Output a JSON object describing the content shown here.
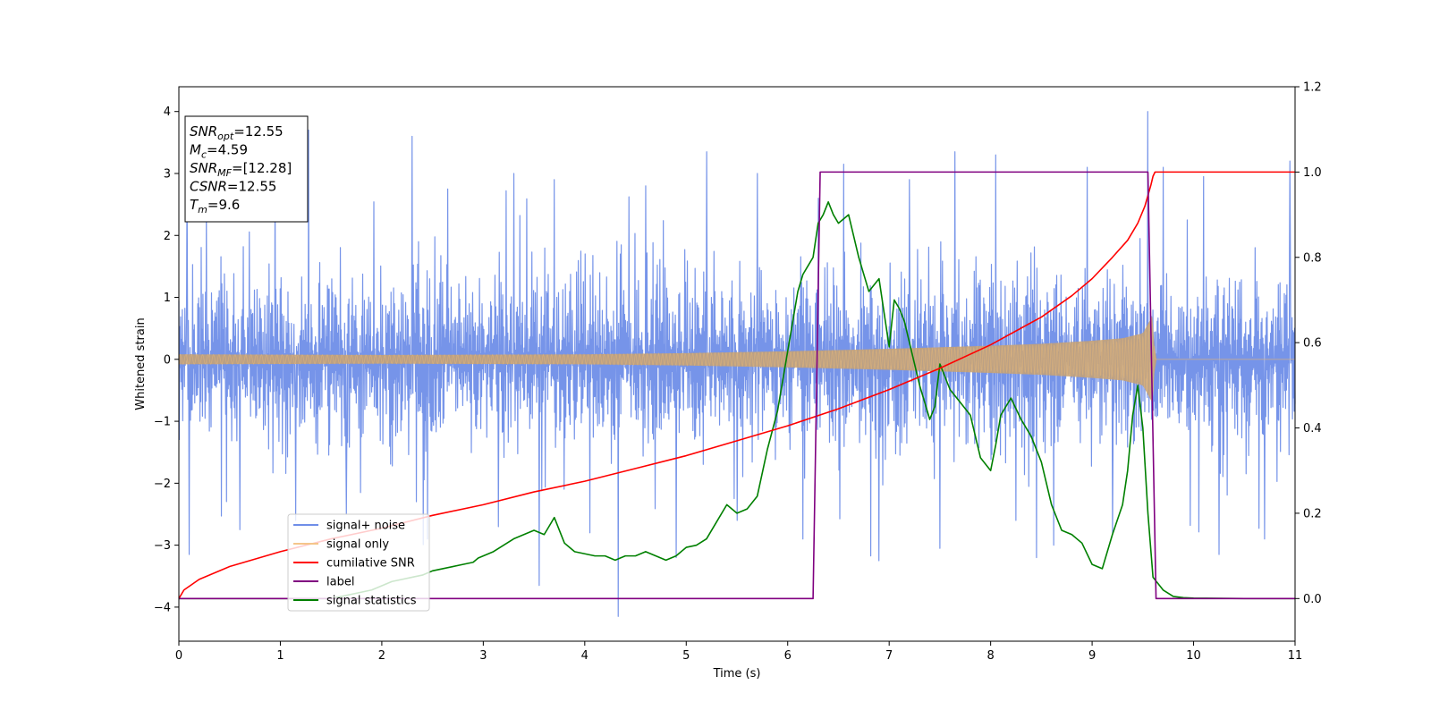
{
  "chart_data": {
    "type": "line",
    "xlabel": "Time (s)",
    "ylabel_left": "Whitened strain",
    "ylabel_right": "",
    "xlim": [
      0,
      11
    ],
    "ylim_left": [
      -4.55,
      4.4
    ],
    "ylim_right": [
      -0.1,
      1.2
    ],
    "x_ticks": [
      0,
      1,
      2,
      3,
      4,
      5,
      6,
      7,
      8,
      9,
      10,
      11
    ],
    "y_ticks_left": [
      -4,
      -3,
      -2,
      -1,
      0,
      1,
      2,
      3,
      4
    ],
    "y_ticks_right": [
      0.0,
      0.2,
      0.4,
      0.6,
      0.8,
      1.0,
      1.2
    ],
    "y_tick_labels_left": [
      "−4",
      "−3",
      "−2",
      "−1",
      "0",
      "1",
      "2",
      "3",
      "4"
    ],
    "y_tick_labels_right": [
      "0.0",
      "0.2",
      "0.4",
      "0.6",
      "0.8",
      "1.0",
      "1.2"
    ],
    "grid": false,
    "legend_position": "lower-left",
    "info_box": {
      "lines": [
        {
          "main": "SNR",
          "sub": "opt",
          "value": "=12.55"
        },
        {
          "main": "M",
          "sub": "c",
          "value": "=4.59"
        },
        {
          "main": "SNR",
          "sub": "MF",
          "value": "=[12.28]"
        },
        {
          "main": "CSNR",
          "sub": "",
          "value": "=12.55"
        },
        {
          "main": "T",
          "sub": "m",
          "value": "=9.6"
        }
      ]
    },
    "series": [
      {
        "name": "signal+ noise",
        "axis": "left",
        "color": "#6f8ee8",
        "kind": "noise",
        "noise_band": 1.3,
        "peaks": [
          {
            "x": 0.08,
            "y": 3.0
          },
          {
            "x": 0.1,
            "y": -3.15
          },
          {
            "x": 0.27,
            "y": 2.45
          },
          {
            "x": 0.6,
            "y": -2.75
          },
          {
            "x": 0.95,
            "y": 3.05
          },
          {
            "x": 1.15,
            "y": -2.6
          },
          {
            "x": 1.28,
            "y": 3.7
          },
          {
            "x": 1.65,
            "y": -2.5
          },
          {
            "x": 2.3,
            "y": 3.6
          },
          {
            "x": 2.45,
            "y": -2.9
          },
          {
            "x": 2.65,
            "y": 2.75
          },
          {
            "x": 3.15,
            "y": -2.7
          },
          {
            "x": 3.3,
            "y": 3.0
          },
          {
            "x": 3.55,
            "y": -3.65
          },
          {
            "x": 3.7,
            "y": 2.9
          },
          {
            "x": 4.05,
            "y": -2.8
          },
          {
            "x": 4.33,
            "y": -4.15
          },
          {
            "x": 4.6,
            "y": 2.8
          },
          {
            "x": 4.9,
            "y": -3.2
          },
          {
            "x": 5.2,
            "y": 3.35
          },
          {
            "x": 5.5,
            "y": -2.6
          },
          {
            "x": 5.7,
            "y": 3.0
          },
          {
            "x": 6.15,
            "y": -2.9
          },
          {
            "x": 6.3,
            "y": 2.6
          },
          {
            "x": 6.55,
            "y": 3.15
          },
          {
            "x": 6.9,
            "y": -3.25
          },
          {
            "x": 7.2,
            "y": 2.9
          },
          {
            "x": 7.5,
            "y": -3.05
          },
          {
            "x": 7.65,
            "y": 3.35
          },
          {
            "x": 8.05,
            "y": 3.3
          },
          {
            "x": 8.25,
            "y": -2.6
          },
          {
            "x": 8.45,
            "y": -3.2
          },
          {
            "x": 8.62,
            "y": -3.0
          },
          {
            "x": 8.95,
            "y": 3.1
          },
          {
            "x": 9.2,
            "y": -2.8
          },
          {
            "x": 9.55,
            "y": 4.0
          },
          {
            "x": 9.7,
            "y": 3.1
          },
          {
            "x": 10.1,
            "y": 2.95
          },
          {
            "x": 10.25,
            "y": -3.15
          },
          {
            "x": 10.7,
            "y": -2.9
          },
          {
            "x": 10.95,
            "y": 3.2
          }
        ]
      },
      {
        "name": "signal only",
        "axis": "left",
        "color": "#f5c58a",
        "kind": "chirp",
        "amp_points": [
          {
            "x": 0,
            "y": 0.08
          },
          {
            "x": 2,
            "y": 0.07
          },
          {
            "x": 4,
            "y": 0.08
          },
          {
            "x": 5,
            "y": 0.1
          },
          {
            "x": 6,
            "y": 0.13
          },
          {
            "x": 7,
            "y": 0.17
          },
          {
            "x": 8,
            "y": 0.22
          },
          {
            "x": 8.5,
            "y": 0.25
          },
          {
            "x": 9,
            "y": 0.3
          },
          {
            "x": 9.3,
            "y": 0.34
          },
          {
            "x": 9.5,
            "y": 0.42
          },
          {
            "x": 9.6,
            "y": 0.72
          },
          {
            "x": 9.62,
            "y": 0.0
          },
          {
            "x": 11,
            "y": 0.0
          }
        ]
      },
      {
        "name": "cumilative SNR",
        "axis": "right",
        "color": "#ff0000",
        "x": [
          0,
          0.05,
          0.2,
          0.5,
          1.0,
          1.5,
          2.0,
          2.5,
          3.0,
          3.5,
          4.0,
          4.5,
          5.0,
          5.5,
          6.0,
          6.5,
          7.0,
          7.5,
          8.0,
          8.5,
          8.8,
          9.0,
          9.2,
          9.35,
          9.45,
          9.52,
          9.58,
          9.6,
          9.62,
          11.0
        ],
        "y": [
          0.0,
          0.02,
          0.045,
          0.075,
          0.11,
          0.14,
          0.165,
          0.195,
          0.22,
          0.25,
          0.275,
          0.305,
          0.335,
          0.37,
          0.405,
          0.445,
          0.49,
          0.54,
          0.595,
          0.66,
          0.71,
          0.75,
          0.8,
          0.84,
          0.88,
          0.92,
          0.97,
          0.99,
          1.0,
          1.0
        ]
      },
      {
        "name": "label",
        "axis": "right",
        "color": "#800080",
        "x": [
          0,
          6.25,
          6.32,
          9.55,
          9.63,
          11.0
        ],
        "y": [
          0.0,
          0.0,
          1.0,
          1.0,
          0.0,
          0.0
        ]
      },
      {
        "name": "signal statistics",
        "axis": "right",
        "color": "#008000",
        "x": [
          0,
          1,
          1.5,
          1.9,
          2.0,
          2.1,
          2.2,
          2.3,
          2.4,
          2.5,
          2.6,
          2.7,
          2.8,
          2.9,
          2.95,
          3.0,
          3.05,
          3.1,
          3.2,
          3.3,
          3.4,
          3.5,
          3.6,
          3.65,
          3.7,
          3.8,
          3.9,
          4.0,
          4.1,
          4.2,
          4.3,
          4.4,
          4.5,
          4.6,
          4.7,
          4.8,
          4.9,
          5.0,
          5.1,
          5.2,
          5.3,
          5.4,
          5.5,
          5.6,
          5.7,
          5.8,
          5.9,
          6.0,
          6.1,
          6.15,
          6.2,
          6.25,
          6.3,
          6.35,
          6.4,
          6.45,
          6.5,
          6.55,
          6.6,
          6.7,
          6.8,
          6.9,
          7.0,
          7.05,
          7.1,
          7.15,
          7.2,
          7.3,
          7.4,
          7.45,
          7.5,
          7.6,
          7.7,
          7.8,
          7.9,
          8.0,
          8.05,
          8.1,
          8.2,
          8.3,
          8.4,
          8.5,
          8.6,
          8.7,
          8.8,
          8.9,
          9.0,
          9.1,
          9.2,
          9.3,
          9.35,
          9.4,
          9.45,
          9.5,
          9.55,
          9.6,
          9.7,
          9.8,
          9.9,
          10.0,
          10.5,
          11.0
        ],
        "y": [
          0.0,
          0.0,
          0.0,
          0.02,
          0.03,
          0.04,
          0.045,
          0.05,
          0.055,
          0.065,
          0.07,
          0.075,
          0.08,
          0.085,
          0.095,
          0.1,
          0.105,
          0.11,
          0.125,
          0.14,
          0.15,
          0.16,
          0.15,
          0.17,
          0.19,
          0.13,
          0.11,
          0.105,
          0.1,
          0.1,
          0.09,
          0.1,
          0.1,
          0.11,
          0.1,
          0.09,
          0.1,
          0.12,
          0.125,
          0.14,
          0.18,
          0.22,
          0.2,
          0.21,
          0.24,
          0.35,
          0.44,
          0.58,
          0.72,
          0.76,
          0.78,
          0.8,
          0.88,
          0.9,
          0.93,
          0.9,
          0.88,
          0.89,
          0.9,
          0.8,
          0.72,
          0.75,
          0.59,
          0.7,
          0.68,
          0.65,
          0.6,
          0.5,
          0.42,
          0.45,
          0.55,
          0.49,
          0.46,
          0.43,
          0.33,
          0.3,
          0.36,
          0.43,
          0.47,
          0.42,
          0.38,
          0.32,
          0.22,
          0.16,
          0.15,
          0.13,
          0.08,
          0.07,
          0.15,
          0.22,
          0.3,
          0.43,
          0.5,
          0.4,
          0.2,
          0.05,
          0.02,
          0.005,
          0.002,
          0.001,
          0.0,
          0.0
        ]
      }
    ]
  }
}
